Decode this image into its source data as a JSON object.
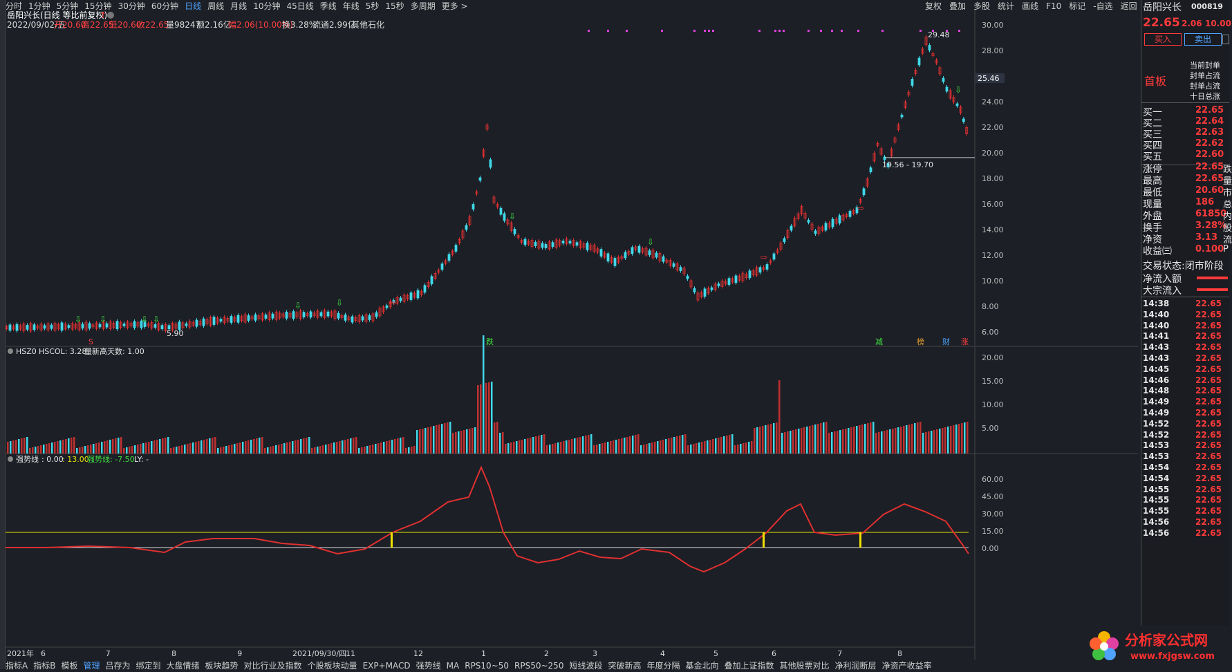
{
  "top_menu": {
    "items": [
      "分时",
      "1分钟",
      "5分钟",
      "15分钟",
      "30分钟",
      "60分钟",
      "日线",
      "周线",
      "月线",
      "10分钟",
      "45日线",
      "季线",
      "年线",
      "5秒",
      "15秒",
      "多周期",
      "更多 >"
    ],
    "active_index": 6,
    "right_items": [
      "复权",
      "叠加",
      "多股",
      "统计",
      "画线",
      "F10",
      "标记",
      "-自选",
      "返回"
    ]
  },
  "header": {
    "title": "岳阳兴长(日线 等比前复权)",
    "info_date": "2022/09/02/五",
    "info_open": "开20.60",
    "info_high": "高22.65",
    "info_low": "低20.60",
    "info_close": "收22.65",
    "info_volume": "量98247",
    "info_amount": "额2.16亿",
    "info_change": "幅2.06(10.00%)",
    "info_turnover": "换3.28%",
    "info_float": "流通2.99亿",
    "info_sector": "其他石化"
  },
  "price_axis": [
    "30.00",
    "28.00",
    "26.00",
    "24.00",
    "22.00",
    "20.00",
    "18.00",
    "16.00",
    "14.00",
    "12.00",
    "10.00",
    "8.00",
    "6.00"
  ],
  "price_annotations": {
    "high_label": "29.48",
    "low_label": "5.90",
    "range_label": "19.56 - 19.70",
    "cursor_price": "25.46"
  },
  "event_markers": {
    "s": "S",
    "die": "跌",
    "jian": "减",
    "bang": "榜",
    "cai": "财",
    "zhang": "涨"
  },
  "volume_panel": {
    "title": "HSZ0",
    "hscol": "HSCOL: 3.28",
    "new_high": "量新高天数: 1.00",
    "axis": [
      "20.00",
      "15.00",
      "10.00",
      "5.00"
    ]
  },
  "indicator_panel": {
    "name": "强势线",
    "vals": [
      ": 0.00",
      ": 13.00",
      "强势线: -7.50",
      "LY: -"
    ],
    "axis": [
      "60.00",
      "45.00",
      "30.00",
      "15.00",
      "0.00"
    ]
  },
  "time_axis": [
    {
      "label": "2021年",
      "pos": 0.0
    },
    {
      "label": "6",
      "pos": 0.035
    },
    {
      "label": "7",
      "pos": 0.102
    },
    {
      "label": "8",
      "pos": 0.17
    },
    {
      "label": "9",
      "pos": 0.238
    },
    {
      "label": "2021/09/30/四",
      "pos": 0.295
    },
    {
      "label": "11",
      "pos": 0.35
    },
    {
      "label": "12",
      "pos": 0.42
    },
    {
      "label": "1",
      "pos": 0.49
    },
    {
      "label": "2",
      "pos": 0.555
    },
    {
      "label": "3",
      "pos": 0.605
    },
    {
      "label": "4",
      "pos": 0.675
    },
    {
      "label": "5",
      "pos": 0.73
    },
    {
      "label": "6",
      "pos": 0.79
    },
    {
      "label": "7",
      "pos": 0.858
    },
    {
      "label": "8",
      "pos": 0.92
    }
  ],
  "bottom_tabs": {
    "items": [
      "指标A",
      "指标B",
      "模板",
      "管理",
      "吕存为",
      "绑定到",
      "大盘情绪",
      "板块趋势",
      "对比行业及指数",
      "个股板块动量",
      "EXP+MACD",
      "强势线",
      "MA",
      "RPS10~50",
      "RPS50~250",
      "短线波段",
      "突破新高",
      "年度分隔",
      "基金北向",
      "叠加上证指数",
      "其他股票对比",
      "净利润断层",
      "净资产收益率"
    ],
    "active_index": 3
  },
  "side_panel": {
    "stock_name": "岳阳兴长",
    "stock_code": "000819",
    "price": "22.65",
    "change": "2.06",
    "change_pct": "10.00",
    "buy_button": "买入",
    "sell_button": "卖出",
    "tag": "首板",
    "seal_notes": [
      "当前封单",
      "封单占流",
      "封单占流",
      "十日总涨"
    ],
    "bids": [
      {
        "label": "买一",
        "price": "22.65"
      },
      {
        "label": "买二",
        "price": "22.64"
      },
      {
        "label": "买三",
        "price": "22.63"
      },
      {
        "label": "买四",
        "price": "22.62"
      },
      {
        "label": "买五",
        "price": "22.60"
      }
    ],
    "stats": [
      {
        "label": "涨停",
        "value": "22.65",
        "extra": "跌"
      },
      {
        "label": "最高",
        "value": "22.65",
        "extra": "量"
      },
      {
        "label": "最低",
        "value": "20.60",
        "extra": "市"
      },
      {
        "label": "现量",
        "value": "186",
        "extra": "总"
      },
      {
        "label": "外盘",
        "value": "61850",
        "extra": "内"
      },
      {
        "label": "换手",
        "value": "3.28%",
        "extra": "股"
      },
      {
        "label": "净资",
        "value": "3.13",
        "extra": "流"
      },
      {
        "label": "收益㈢",
        "value": "0.100",
        "extra": "P"
      }
    ],
    "trade_status": "交易状态:闭市阶段",
    "net_inflow": "净流入额",
    "block_inflow": "大宗流入",
    "ticks": [
      {
        "t": "14:38",
        "p": "22.65"
      },
      {
        "t": "14:40",
        "p": "22.65"
      },
      {
        "t": "14:40",
        "p": "22.65"
      },
      {
        "t": "14:41",
        "p": "22.65"
      },
      {
        "t": "14:43",
        "p": "22.65"
      },
      {
        "t": "14:43",
        "p": "22.65"
      },
      {
        "t": "14:45",
        "p": "22.65"
      },
      {
        "t": "14:46",
        "p": "22.65"
      },
      {
        "t": "14:48",
        "p": "22.65"
      },
      {
        "t": "14:49",
        "p": "22.65"
      },
      {
        "t": "14:49",
        "p": "22.65"
      },
      {
        "t": "14:52",
        "p": "22.65"
      },
      {
        "t": "14:52",
        "p": "22.65"
      },
      {
        "t": "14:53",
        "p": "22.65"
      },
      {
        "t": "14:53",
        "p": "22.65"
      },
      {
        "t": "14:54",
        "p": "22.65"
      },
      {
        "t": "14:54",
        "p": "22.65"
      },
      {
        "t": "14:55",
        "p": "22.65"
      },
      {
        "t": "14:55",
        "p": "22.65"
      },
      {
        "t": "14:55",
        "p": "22.65"
      },
      {
        "t": "14:56",
        "p": "22.65"
      },
      {
        "t": "14:56",
        "p": "22.65"
      }
    ]
  },
  "watermark": {
    "text_cn": "分析家公式网",
    "text_url": "www.fxjgsw.com"
  }
}
